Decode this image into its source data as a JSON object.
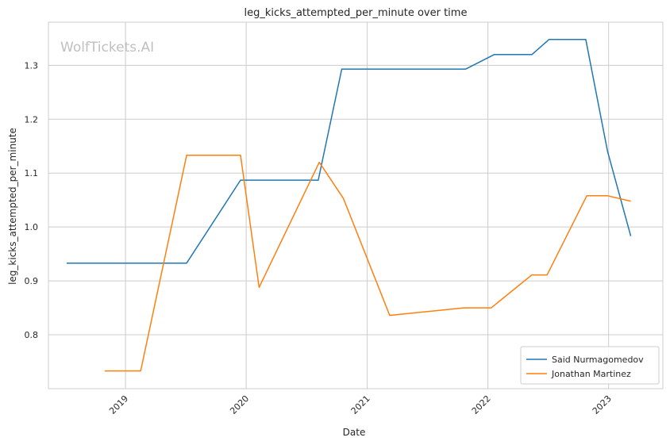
{
  "chart_data": {
    "type": "line",
    "title": "leg_kicks_attempted_per_minute over time",
    "xlabel": "Date",
    "ylabel": "leg_kicks_attempted_per_minute",
    "watermark": "WolfTickets.AI",
    "grid": true,
    "legend_position": "bottom-right",
    "x_ticks": [
      "2019",
      "2020",
      "2021",
      "2022",
      "2023"
    ],
    "y_ticks": [
      "0.8",
      "0.9",
      "1.0",
      "1.1",
      "1.2",
      "1.3"
    ],
    "xlim": [
      "2018-05-13",
      "2023-06-14"
    ],
    "ylim": [
      0.7,
      1.38
    ],
    "series": [
      {
        "name": "Said Nurmagomedov",
        "color": "#1f77b4",
        "points": [
          {
            "x": "2018-07-07",
            "y": 0.933
          },
          {
            "x": "2019-07-05",
            "y": 0.933
          },
          {
            "x": "2019-12-15",
            "y": 1.087
          },
          {
            "x": "2020-08-06",
            "y": 1.087
          },
          {
            "x": "2020-10-16",
            "y": 1.293
          },
          {
            "x": "2021-10-26",
            "y": 1.293
          },
          {
            "x": "2022-01-20",
            "y": 1.32
          },
          {
            "x": "2022-05-14",
            "y": 1.32
          },
          {
            "x": "2022-07-05",
            "y": 1.348
          },
          {
            "x": "2022-10-24",
            "y": 1.348
          },
          {
            "x": "2022-12-29",
            "y": 1.14
          },
          {
            "x": "2023-03-09",
            "y": 0.983
          }
        ]
      },
      {
        "name": "Jonathan Martinez",
        "color": "#ff7f0e",
        "points": [
          {
            "x": "2018-10-30",
            "y": 0.733
          },
          {
            "x": "2019-02-16",
            "y": 0.733
          },
          {
            "x": "2019-07-05",
            "y": 1.133
          },
          {
            "x": "2019-12-15",
            "y": 1.133
          },
          {
            "x": "2020-02-09",
            "y": 0.888
          },
          {
            "x": "2020-08-09",
            "y": 1.12
          },
          {
            "x": "2020-10-21",
            "y": 1.053
          },
          {
            "x": "2021-03-10",
            "y": 0.836
          },
          {
            "x": "2021-10-20",
            "y": 0.85
          },
          {
            "x": "2022-01-11",
            "y": 0.85
          },
          {
            "x": "2022-02-20",
            "y": 0.87
          },
          {
            "x": "2022-05-14",
            "y": 0.911
          },
          {
            "x": "2022-06-29",
            "y": 0.911
          },
          {
            "x": "2022-10-27",
            "y": 1.058
          },
          {
            "x": "2022-12-29",
            "y": 1.058
          },
          {
            "x": "2023-03-09",
            "y": 1.048
          }
        ]
      }
    ]
  }
}
